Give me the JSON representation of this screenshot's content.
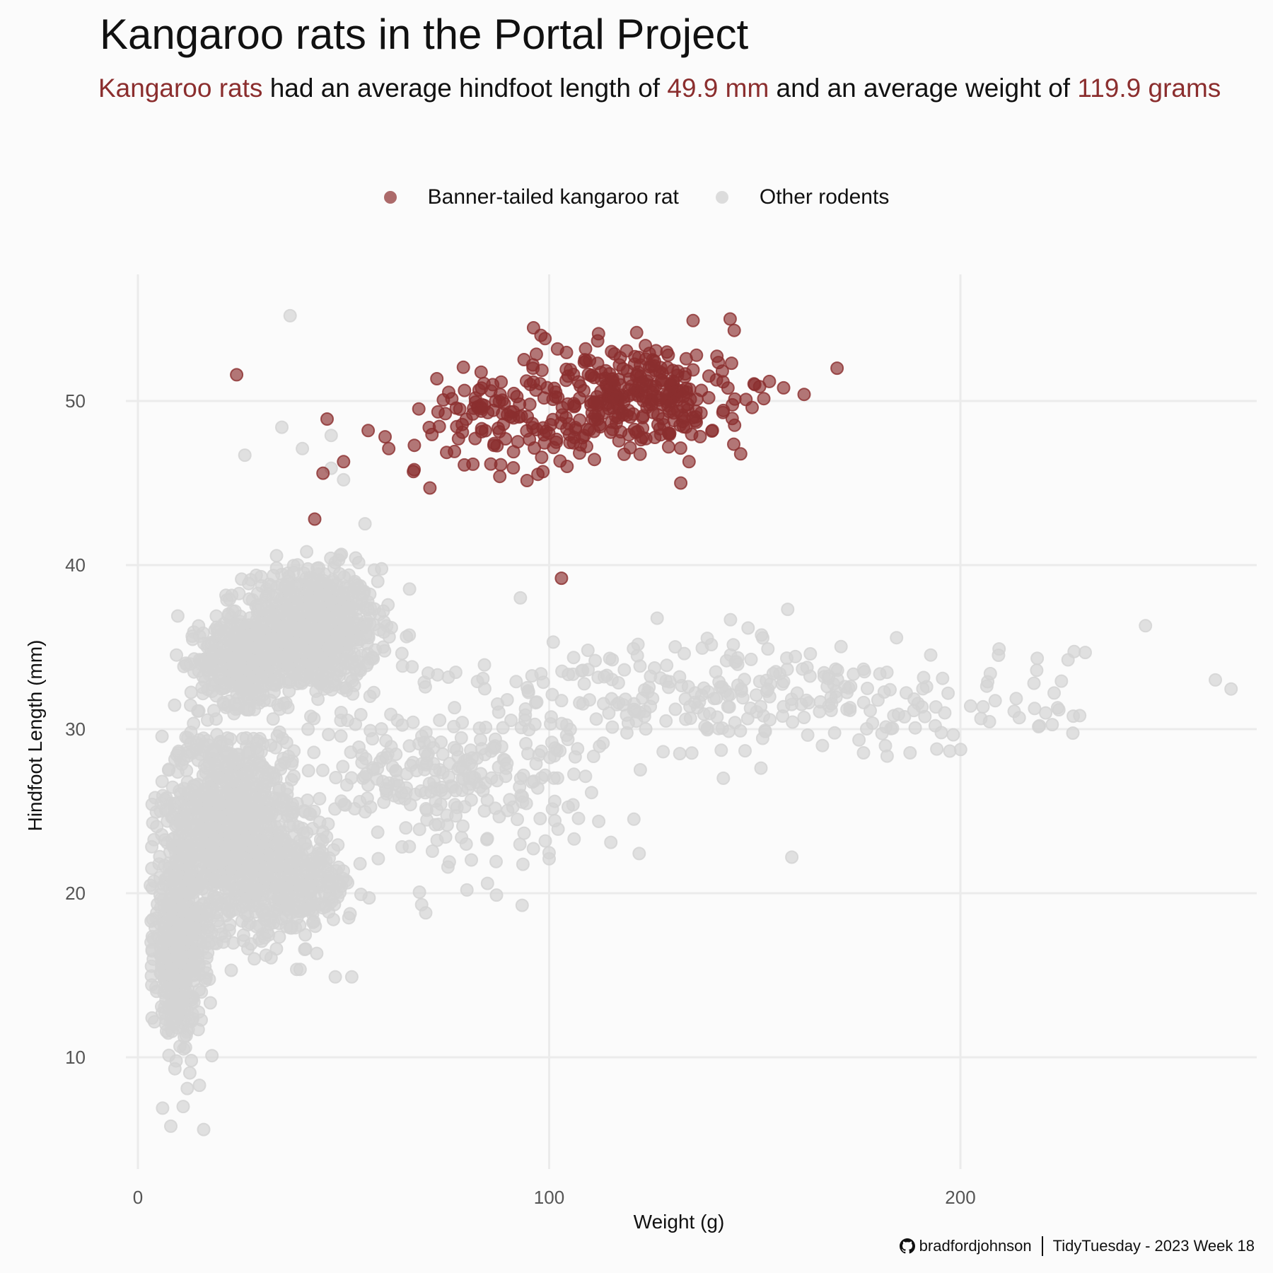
{
  "title": "Kangaroo rats in the Portal Project",
  "subtitle": {
    "part1": "Kangaroo rats",
    "part2": " had an average hindfoot length of ",
    "part3": "49.9 mm",
    "part4": " and an average weight of ",
    "part5": "119.9 grams"
  },
  "caption": {
    "icon": "github-icon",
    "handle": "bradfordjohnson",
    "source": "TidyTuesday - 2023 Week 18"
  },
  "colors": {
    "highlight": "#8b2e2e",
    "other": "#d4d4d4",
    "grid": "#ebebeb",
    "background": "#fbfbfb"
  },
  "chart_data": {
    "type": "scatter",
    "title": "Kangaroo rats in the Portal Project",
    "xlabel": "Weight (g)",
    "ylabel": "Hindfoot Length (mm)",
    "xlim": [
      -1.5,
      272
    ],
    "ylim": [
      3.7,
      57.8
    ],
    "x_ticks": [
      0,
      100,
      200
    ],
    "y_ticks": [
      10,
      20,
      30,
      40,
      50
    ],
    "x_tick_labels": [
      "0",
      "100",
      "200"
    ],
    "y_tick_labels": [
      "10",
      "20",
      "30",
      "40",
      "50"
    ],
    "grid": true,
    "legend_position": "top",
    "legend": [
      "Banner-tailed kangaroo rat",
      "Other rodents"
    ],
    "series": [
      {
        "name": "Banner-tailed kangaroo rat",
        "color": "#8b2e2e",
        "clusters": [
          {
            "n": 260,
            "mean": [
              123,
              50.3
            ],
            "sd": [
              11,
              1.6
            ]
          },
          {
            "n": 110,
            "mean": [
              100,
              49.3
            ],
            "sd": [
              14,
              1.9
            ]
          },
          {
            "n": 40,
            "mean": [
              78,
              48.6
            ],
            "sd": [
              9,
              1.4
            ]
          }
        ],
        "points": [
          [
            24,
            51.6
          ],
          [
            43,
            42.8
          ],
          [
            45,
            45.6
          ],
          [
            46,
            48.9
          ],
          [
            50,
            46.3
          ],
          [
            56,
            48.2
          ],
          [
            61,
            47.1
          ],
          [
            67,
            45.7
          ],
          [
            71,
            44.7
          ],
          [
            103,
            39.2
          ],
          [
            144,
            55
          ],
          [
            145,
            54.3
          ],
          [
            150,
            51
          ],
          [
            157,
            50.8
          ],
          [
            162,
            50.4
          ],
          [
            170,
            52
          ],
          [
            135,
            54.9
          ],
          [
            132,
            45
          ],
          [
            88,
            45.4
          ],
          [
            98,
            54
          ],
          [
            99,
            53.8
          ],
          [
            112,
            54.1
          ]
        ]
      },
      {
        "name": "Other rodents",
        "color": "#d4d4d4",
        "clusters": [
          {
            "n": 900,
            "mean": [
              42,
              36
            ],
            "sd": [
              8,
              1.9
            ]
          },
          {
            "n": 380,
            "mean": [
              25,
              34.2
            ],
            "sd": [
              5,
              1.3
            ]
          },
          {
            "n": 1100,
            "mean": [
              22,
              24
            ],
            "sd": [
              8,
              3
            ]
          },
          {
            "n": 600,
            "mean": [
              10,
              16.5
            ],
            "sd": [
              3,
              2.4
            ]
          },
          {
            "n": 300,
            "mean": [
              38,
              20.5
            ],
            "sd": [
              7,
              1.5
            ]
          },
          {
            "n": 260,
            "mean": [
              75,
              27
            ],
            "sd": [
              18,
              2.2
            ]
          },
          {
            "n": 320,
            "mean": [
              150,
              31.8
            ],
            "sd": [
              38,
              1.8
            ]
          }
        ],
        "points": [
          [
            37,
            55.2
          ],
          [
            35,
            48.4
          ],
          [
            40,
            47.1
          ],
          [
            26,
            46.7
          ],
          [
            47,
            47.9
          ],
          [
            47,
            45.9
          ],
          [
            50,
            45.2
          ],
          [
            93,
            38
          ],
          [
            158,
            37.3
          ],
          [
            245,
            36.3
          ],
          [
            262,
            33
          ],
          [
            159,
            22.2
          ],
          [
            100,
            22.1
          ],
          [
            115,
            23.1
          ],
          [
            69,
            19.3
          ],
          [
            70,
            18.8
          ],
          [
            85,
            20.6
          ],
          [
            80,
            20.2
          ],
          [
            48,
            14.9
          ],
          [
            52,
            14.9
          ],
          [
            8,
            5.8
          ],
          [
            16,
            5.6
          ],
          [
            6,
            6.9
          ],
          [
            11,
            7
          ],
          [
            12,
            8.1
          ],
          [
            18,
            10.1
          ],
          [
            13,
            9.8
          ],
          [
            9,
            9.3
          ]
        ]
      }
    ]
  }
}
